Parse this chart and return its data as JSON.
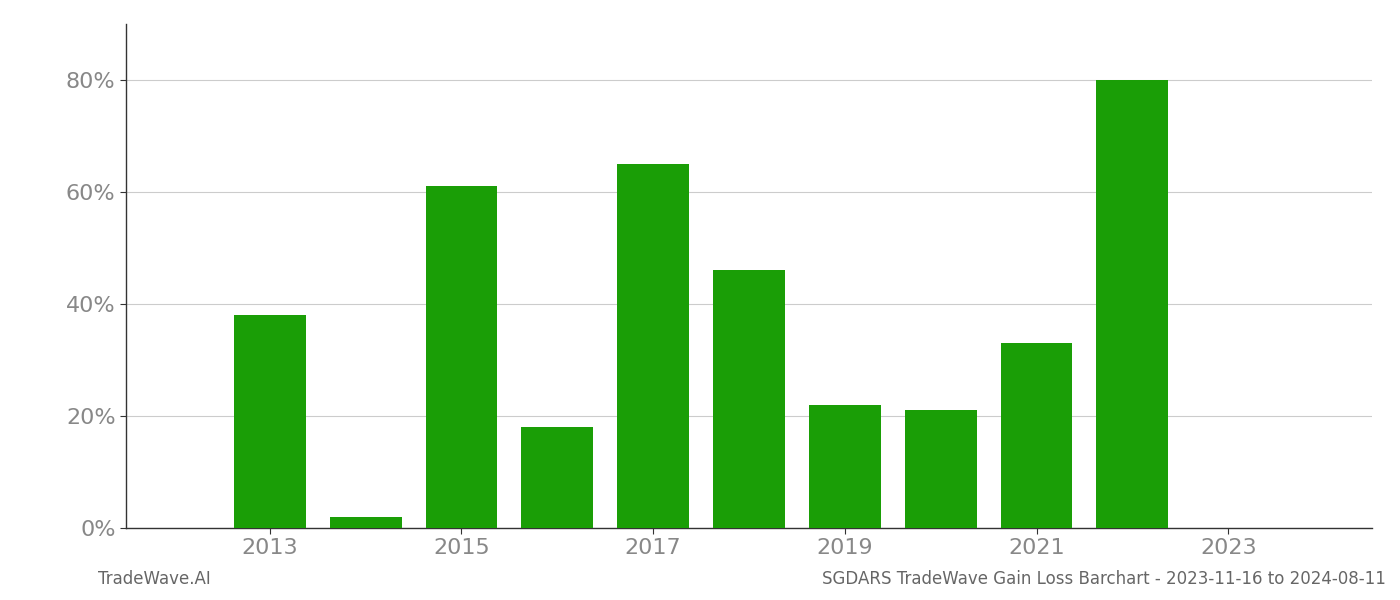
{
  "years": [
    2013,
    2014,
    2015,
    2016,
    2017,
    2018,
    2019,
    2020,
    2021,
    2022
  ],
  "values": [
    0.38,
    0.02,
    0.61,
    0.18,
    0.65,
    0.46,
    0.22,
    0.21,
    0.33,
    0.8
  ],
  "bar_color": "#1a9e06",
  "xtick_labels": [
    "2013",
    "2015",
    "2017",
    "2019",
    "2021",
    "2023"
  ],
  "xtick_positions": [
    2013,
    2015,
    2017,
    2019,
    2021,
    2023
  ],
  "ytick_labels": [
    "0%",
    "20%",
    "40%",
    "60%",
    "80%"
  ],
  "ytick_values": [
    0.0,
    0.2,
    0.4,
    0.6,
    0.8
  ],
  "ylim": [
    0,
    0.9
  ],
  "xlim": [
    2011.5,
    2024.5
  ],
  "footer_left": "TradeWave.AI",
  "footer_right": "SGDARS TradeWave Gain Loss Barchart - 2023-11-16 to 2024-08-11",
  "bar_width": 0.75,
  "grid_color": "#cccccc",
  "background_color": "#ffffff",
  "tick_font_color": "#888888",
  "footer_font_color": "#666666",
  "spine_color": "#333333",
  "font_size_ticks": 16,
  "font_size_footer": 12
}
